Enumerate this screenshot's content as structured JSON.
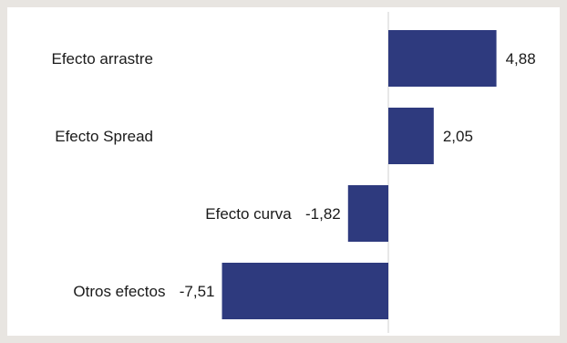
{
  "chart_data": {
    "type": "bar",
    "orientation": "horizontal",
    "categories": [
      "Efecto arrastre",
      "Efecto Spread",
      "Efecto curva",
      "Otros efectos"
    ],
    "values": [
      4.88,
      2.05,
      -1.82,
      -7.51
    ],
    "value_labels": [
      "4,88",
      "2,05",
      "-1,82",
      "-7,51"
    ],
    "title": "",
    "xlabel": "",
    "ylabel": "",
    "xlim": [
      -9,
      7
    ],
    "grid": false,
    "legend": "none",
    "bar_color": "#2e3a7e",
    "axis_color": "#d0d0d0"
  }
}
